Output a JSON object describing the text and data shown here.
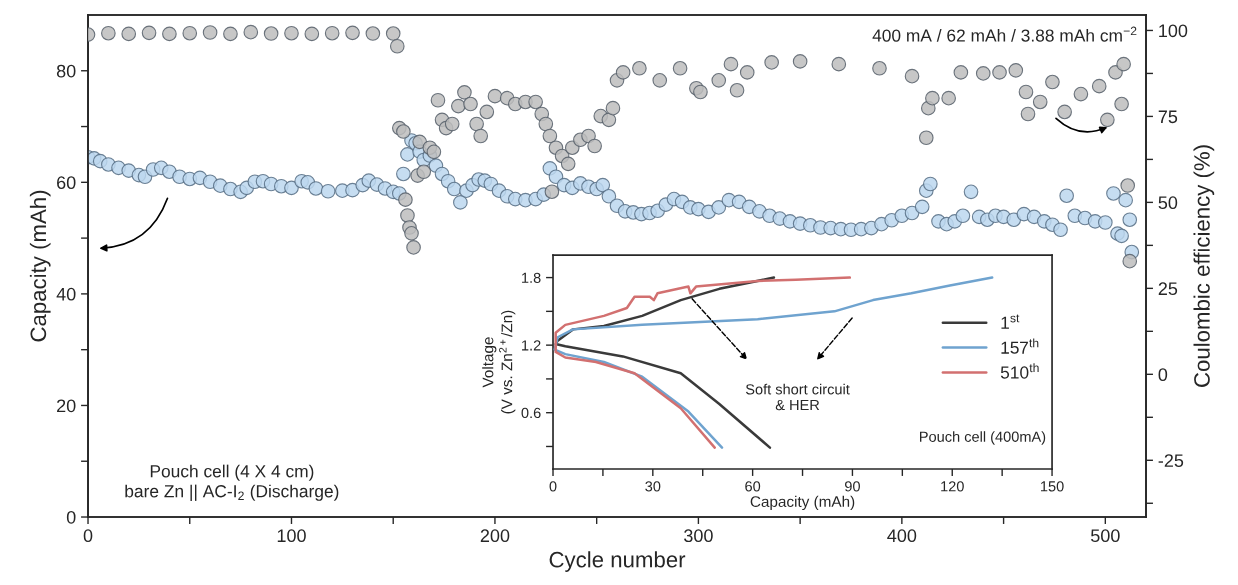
{
  "chart_data": [
    {
      "type": "scatter",
      "xlabel": "Cycle number",
      "ylabel": "Capacity (mAh)",
      "y2label": "Coulombic efficiency (%)",
      "xlim": [
        0,
        520
      ],
      "xticks": [
        0,
        {
          "value": 50,
          "label": null
        },
        100,
        {
          "value": 150,
          "label": null
        },
        200,
        {
          "value": 250,
          "label": null
        },
        300,
        {
          "value": 350,
          "label": null
        },
        400,
        {
          "value": 450,
          "label": null
        },
        500
      ],
      "ylim": [
        0,
        90
      ],
      "yticks": [
        0,
        {
          "value": 10,
          "label": null
        },
        20,
        {
          "value": 30,
          "label": null
        },
        40,
        {
          "value": 50,
          "label": null
        },
        60,
        {
          "value": 70,
          "label": null
        },
        80
      ],
      "y2lim": [
        -41.5,
        104.5
      ],
      "y2ticks": [
        {
          "value": -37.5,
          "label": null
        },
        -25,
        {
          "value": -12.5,
          "label": null
        },
        0,
        {
          "value": 12.5,
          "label": null
        },
        25,
        {
          "value": 37.5,
          "label": null
        },
        50,
        {
          "value": 62.5,
          "label": null
        },
        75,
        {
          "value": 87.5,
          "label": null
        },
        100
      ],
      "marker": "circle",
      "annotations": [
        "400 mA / 62 mAh / 3.88 mAh cm$^{−2}$",
        "Pouch cell (4 X 4 cm)\nbare Zn || AC-I$_{2}$ (Discharge)"
      ],
      "series": [
        {
          "color": "#bcd7ee",
          "x": [
            0,
            3,
            6,
            10,
            15,
            20,
            25,
            28,
            32,
            36,
            40,
            45,
            50,
            55,
            60,
            65,
            70,
            75,
            78,
            82,
            86,
            90,
            95,
            100,
            105,
            108,
            112,
            118,
            125,
            130,
            135,
            138,
            142,
            146,
            150,
            153,
            155,
            157,
            159,
            161,
            163,
            165,
            168,
            171,
            174,
            177,
            180,
            183,
            186,
            189,
            192,
            195,
            198,
            202,
            206,
            210,
            215,
            220,
            224,
            227,
            230,
            234,
            238,
            242,
            246,
            250,
            253,
            256,
            260,
            264,
            268,
            272,
            276,
            280,
            284,
            288,
            292,
            296,
            300,
            305,
            310,
            315,
            320,
            325,
            330,
            335,
            340,
            345,
            350,
            355,
            360,
            365,
            370,
            375,
            380,
            385,
            390,
            395,
            400,
            405,
            410,
            412,
            414,
            418,
            422,
            426,
            430,
            434,
            438,
            442,
            446,
            450,
            455,
            460,
            465,
            470,
            474,
            478,
            481,
            485,
            490,
            495,
            500,
            504,
            506,
            508,
            510,
            512,
            513
          ],
          "values": [
            64.5,
            64.3,
            63.8,
            63.2,
            62.6,
            62.1,
            61.3,
            61.0,
            62.3,
            62.6,
            61.9,
            61.0,
            60.6,
            60.8,
            60.1,
            59.4,
            58.8,
            58.3,
            59.0,
            60.1,
            60.2,
            59.7,
            59.3,
            59.0,
            60.2,
            60.0,
            58.9,
            58.4,
            58.5,
            58.6,
            59.5,
            60.3,
            59.6,
            58.9,
            58.3,
            58.0,
            61.5,
            65.0,
            67.5,
            67.0,
            65.5,
            64.0,
            64.8,
            63.0,
            61.5,
            60.2,
            58.8,
            56.4,
            58.5,
            59.5,
            60.5,
            60.3,
            59.7,
            58.5,
            57.5,
            57.0,
            56.8,
            57.0,
            57.8,
            62.5,
            61.0,
            59.5,
            59.0,
            59.8,
            59.2,
            58.8,
            59.5,
            57.5,
            55.8,
            54.8,
            54.6,
            54.3,
            54.5,
            54.9,
            56.0,
            57.0,
            56.5,
            55.5,
            55.2,
            54.7,
            55.5,
            56.8,
            56.5,
            55.6,
            54.8,
            54.0,
            53.5,
            53.0,
            52.6,
            52.3,
            51.9,
            51.8,
            51.6,
            51.5,
            51.6,
            51.8,
            52.5,
            53.2,
            54.0,
            54.5,
            55.6,
            58.5,
            59.7,
            53.0,
            52.5,
            53.0,
            54.0,
            58.3,
            53.8,
            53.3,
            54.0,
            53.8,
            53.3,
            54.3,
            53.8,
            53.0,
            52.4,
            51.5,
            57.6,
            54.0,
            53.6,
            53.0,
            52.8,
            58.0,
            50.8,
            50.4,
            56.8,
            53.3,
            47.5
          ]
        },
        {
          "color": "#bdbdbd",
          "axis": "y2",
          "x": [
            0,
            10,
            20,
            30,
            40,
            50,
            60,
            70,
            80,
            90,
            100,
            110,
            120,
            130,
            140,
            150,
            152,
            153,
            155,
            156,
            157,
            158,
            159,
            160,
            162,
            163,
            165,
            168,
            170,
            172,
            174,
            176,
            179,
            182,
            185,
            188,
            191,
            193,
            196,
            200,
            206,
            210,
            215,
            220,
            223,
            225,
            227,
            228,
            230,
            233,
            236,
            238,
            242,
            246,
            249,
            252,
            256,
            258,
            260,
            263,
            271,
            281,
            291,
            299,
            301,
            310,
            316,
            319,
            324,
            336,
            350,
            369,
            389,
            405,
            412,
            413,
            415,
            423,
            429,
            440,
            448,
            456,
            461,
            462,
            468,
            474,
            480,
            488,
            497,
            501,
            505,
            508,
            509,
            511,
            512
          ],
          "values": [
            98.8,
            99.2,
            99.0,
            99.3,
            99.0,
            99.2,
            99.4,
            99.0,
            99.5,
            99.1,
            99.2,
            99.0,
            99.2,
            99.3,
            99.1,
            99.1,
            95.4,
            71.6,
            70.6,
            50.8,
            46.2,
            42.7,
            41.0,
            36.9,
            57.8,
            67.6,
            58.9,
            65.9,
            64.7,
            79.7,
            74.0,
            71.6,
            72.8,
            78.0,
            82.0,
            78.6,
            72.8,
            69.3,
            76.3,
            80.9,
            80.3,
            78.6,
            79.2,
            79.2,
            75.7,
            72.8,
            69.3,
            53.1,
            65.9,
            63.5,
            61.2,
            65.9,
            68.2,
            69.3,
            66.4,
            75.1,
            74.0,
            77.4,
            85.5,
            87.8,
            89.0,
            85.5,
            89.0,
            83.2,
            82.1,
            85.5,
            90.2,
            82.6,
            87.8,
            90.7,
            91.0,
            90.2,
            89.0,
            86.7,
            68.8,
            77.4,
            80.3,
            80.3,
            87.8,
            87.5,
            87.8,
            88.4,
            82.1,
            75.7,
            79.2,
            85.0,
            76.3,
            81.5,
            83.8,
            74.0,
            87.8,
            78.6,
            90.2,
            54.9,
            32.9
          ]
        }
      ]
    },
    {
      "type": "line",
      "xlabel": "Capacity (mAh)",
      "ylabel": "Voltage\n(V vs. Zn$^{2+}$/Zn)",
      "xlim": [
        0,
        150
      ],
      "xticks": [
        0,
        {
          "value": 15,
          "label": null
        },
        30,
        {
          "value": 45,
          "label": null
        },
        60,
        {
          "value": 75,
          "label": null
        },
        90,
        {
          "value": 105,
          "label": null
        },
        120,
        {
          "value": 135,
          "label": null
        },
        150
      ],
      "ylim": [
        0.1,
        2.0
      ],
      "yticks": [
        {
          "value": 0.3,
          "label": null
        },
        0.6,
        {
          "value": 0.9,
          "label": null
        },
        1.2,
        {
          "value": 1.5,
          "label": null
        },
        1.8
      ],
      "legend": "right",
      "line_style": "solid",
      "annotations": [
        "Soft short circuit\n& HER",
        "Pouch cell (400mA)"
      ],
      "series": [
        {
          "name": "1$^{st}$",
          "color": "#3a3a3a",
          "x": [
            65.2,
            49.9,
            38.4,
            21.0,
            3.7,
            0.8,
            1.4,
            6.0,
            15.3,
            26.8,
            38.4,
            50.0,
            66.4
          ],
          "values": [
            0.29,
            0.68,
            0.95,
            1.1,
            1.19,
            1.21,
            1.24,
            1.34,
            1.37,
            1.46,
            1.6,
            1.7,
            1.8
          ]
        },
        {
          "name": "157$^{th}$",
          "color": "#6fa3cf",
          "x": [
            50.8,
            40.7,
            26.8,
            15.3,
            3.7,
            0.5,
            1.4,
            6.0,
            26.8,
            61.5,
            84.6,
            96.2,
            107.7,
            119.3,
            132.0
          ],
          "values": [
            0.29,
            0.61,
            0.92,
            1.05,
            1.12,
            1.16,
            1.27,
            1.34,
            1.38,
            1.43,
            1.5,
            1.6,
            1.66,
            1.73,
            1.8
          ]
        },
        {
          "name": "510$^{th}$",
          "color": "#d27070",
          "x": [
            48.6,
            38.4,
            24.5,
            12.9,
            3.7,
            0.8,
            0.8,
            3.7,
            15.3,
            22.2,
            24.5,
            29.1,
            30.3,
            31.4,
            40.7,
            41.3,
            43.0,
            61.5,
            73.0,
            89.2
          ],
          "values": [
            0.29,
            0.64,
            0.95,
            1.05,
            1.09,
            1.14,
            1.31,
            1.38,
            1.46,
            1.53,
            1.63,
            1.63,
            1.6,
            1.66,
            1.72,
            1.66,
            1.72,
            1.77,
            1.78,
            1.8
          ]
        }
      ]
    }
  ]
}
